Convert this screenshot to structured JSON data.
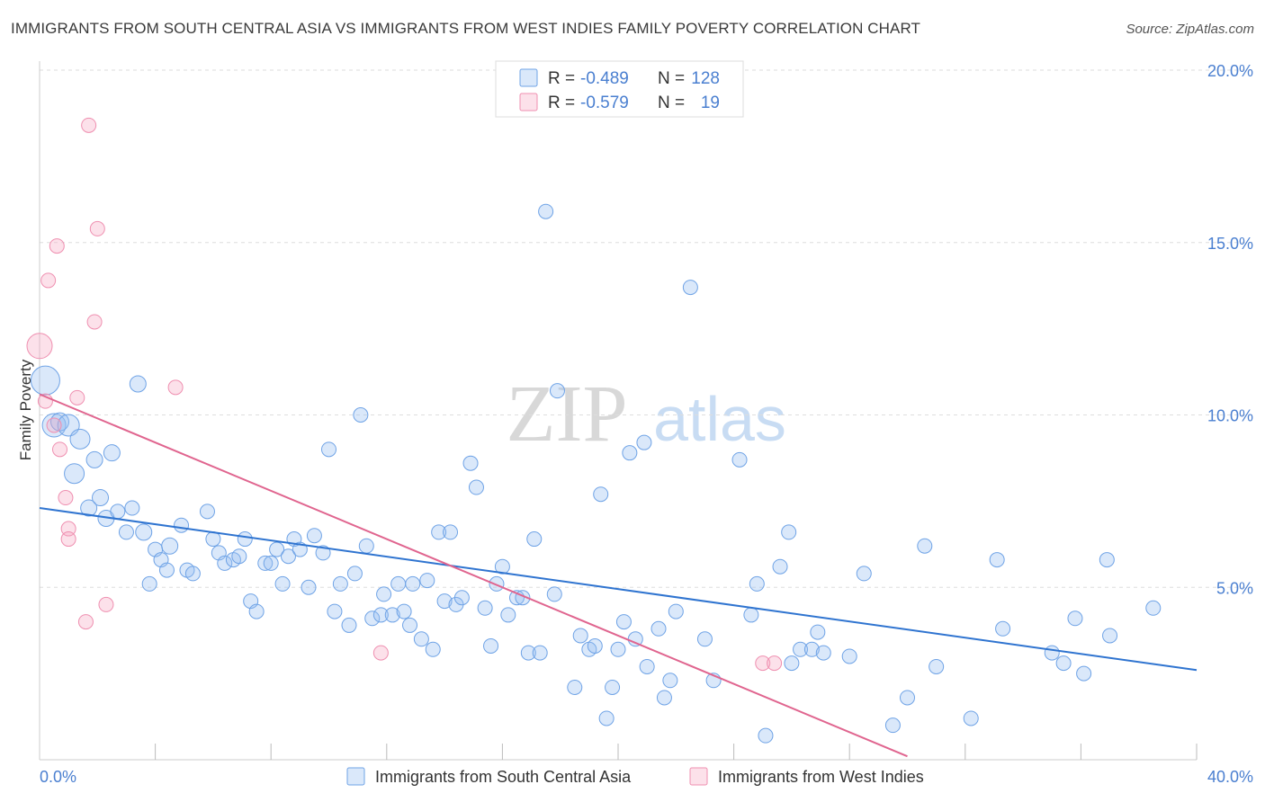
{
  "header": {
    "title": "IMMIGRANTS FROM SOUTH CENTRAL ASIA VS IMMIGRANTS FROM WEST INDIES FAMILY POVERTY CORRELATION CHART",
    "source": "Source: ZipAtlas.com"
  },
  "watermark": {
    "zip": "ZIP",
    "atlas": "atlas"
  },
  "colors": {
    "blue": "#6fa3e6",
    "blue_fill": "rgba(150,190,240,0.35)",
    "blue_line": "#2f74d0",
    "pink": "#ef8fb0",
    "pink_fill": "rgba(245,170,195,0.35)",
    "pink_line": "#e0658f",
    "axis_label": "#4a7fd0",
    "grid": "#dddddd"
  },
  "legend_box": {
    "rows": [
      {
        "r_label": "R =",
        "r_value": "-0.489",
        "n_label": "N =",
        "n_value": "128",
        "color": "blue"
      },
      {
        "r_label": "R =",
        "r_value": "-0.579",
        "n_label": "N =",
        "n_value": "19",
        "color": "pink"
      }
    ]
  },
  "chart_data": {
    "type": "scatter",
    "title": "IMMIGRANTS FROM SOUTH CENTRAL ASIA VS IMMIGRANTS FROM WEST INDIES FAMILY POVERTY CORRELATION CHART",
    "xlabel": "",
    "ylabel": "Family Poverty",
    "xlim": [
      0,
      40
    ],
    "ylim": [
      0,
      20
    ],
    "x_tick_labels": [
      "0.0%",
      "40.0%"
    ],
    "y_tick_labels": [
      "5.0%",
      "10.0%",
      "15.0%",
      "20.0%"
    ],
    "y_ticks": [
      5,
      10,
      15,
      20
    ],
    "x_minor_ticks": [
      4,
      8,
      12,
      16,
      20,
      24,
      28,
      32,
      36,
      40
    ],
    "grid": true,
    "legend_position": "bottom",
    "series": [
      {
        "name": "Immigrants from South Central Asia",
        "color": "blue",
        "r": -0.489,
        "n": 128,
        "trend": {
          "x": [
            0,
            40
          ],
          "y": [
            7.3,
            2.6
          ]
        },
        "points": [
          [
            0.2,
            11.0,
            16
          ],
          [
            0.5,
            9.7,
            13
          ],
          [
            0.7,
            9.8,
            10
          ],
          [
            1.0,
            9.7,
            12
          ],
          [
            1.4,
            9.3,
            11
          ],
          [
            1.2,
            8.3,
            11
          ],
          [
            1.9,
            8.7,
            9
          ],
          [
            2.5,
            8.9,
            9
          ],
          [
            2.1,
            7.6,
            9
          ],
          [
            1.7,
            7.3,
            9
          ],
          [
            2.3,
            7.0,
            9
          ],
          [
            2.7,
            7.2,
            8
          ],
          [
            3.2,
            7.3,
            8
          ],
          [
            3.0,
            6.6,
            8
          ],
          [
            3.6,
            6.6,
            9
          ],
          [
            3.4,
            10.9,
            9
          ],
          [
            4.0,
            6.1,
            8
          ],
          [
            4.5,
            6.2,
            9
          ],
          [
            4.2,
            5.8,
            8
          ],
          [
            4.4,
            5.5,
            8
          ],
          [
            3.8,
            5.1,
            8
          ],
          [
            4.9,
            6.8,
            8
          ],
          [
            5.1,
            5.5,
            8
          ],
          [
            5.3,
            5.4,
            8
          ],
          [
            5.8,
            7.2,
            8
          ],
          [
            6.0,
            6.4,
            8
          ],
          [
            6.2,
            6.0,
            8
          ],
          [
            6.4,
            5.7,
            8
          ],
          [
            6.7,
            5.8,
            8
          ],
          [
            6.9,
            5.9,
            8
          ],
          [
            7.1,
            6.4,
            8
          ],
          [
            7.3,
            4.6,
            8
          ],
          [
            7.5,
            4.3,
            8
          ],
          [
            7.8,
            5.7,
            8
          ],
          [
            8.0,
            5.7,
            8
          ],
          [
            8.2,
            6.1,
            8
          ],
          [
            8.4,
            5.1,
            8
          ],
          [
            8.8,
            6.4,
            8
          ],
          [
            8.6,
            5.9,
            8
          ],
          [
            9.0,
            6.1,
            8
          ],
          [
            9.3,
            5.0,
            8
          ],
          [
            9.5,
            6.5,
            8
          ],
          [
            9.8,
            6.0,
            8
          ],
          [
            10.0,
            9.0,
            8
          ],
          [
            10.2,
            4.3,
            8
          ],
          [
            10.4,
            5.1,
            8
          ],
          [
            10.7,
            3.9,
            8
          ],
          [
            10.9,
            5.4,
            8
          ],
          [
            11.1,
            10.0,
            8
          ],
          [
            11.3,
            6.2,
            8
          ],
          [
            11.5,
            4.1,
            8
          ],
          [
            11.8,
            4.2,
            8
          ],
          [
            11.9,
            4.8,
            8
          ],
          [
            12.2,
            4.2,
            8
          ],
          [
            12.4,
            5.1,
            8
          ],
          [
            12.6,
            4.3,
            8
          ],
          [
            12.8,
            3.9,
            8
          ],
          [
            12.9,
            5.1,
            8
          ],
          [
            13.2,
            3.5,
            8
          ],
          [
            13.4,
            5.2,
            8
          ],
          [
            13.6,
            3.2,
            8
          ],
          [
            13.8,
            6.6,
            8
          ],
          [
            14.0,
            4.6,
            8
          ],
          [
            14.2,
            6.6,
            8
          ],
          [
            14.4,
            4.5,
            8
          ],
          [
            14.6,
            4.7,
            8
          ],
          [
            14.9,
            8.6,
            8
          ],
          [
            15.1,
            7.9,
            8
          ],
          [
            15.4,
            4.4,
            8
          ],
          [
            15.6,
            3.3,
            8
          ],
          [
            15.8,
            5.1,
            8
          ],
          [
            16.0,
            5.6,
            8
          ],
          [
            16.2,
            4.2,
            8
          ],
          [
            16.5,
            4.7,
            8
          ],
          [
            16.7,
            4.7,
            8
          ],
          [
            16.9,
            3.1,
            8
          ],
          [
            17.1,
            6.4,
            8
          ],
          [
            17.3,
            3.1,
            8
          ],
          [
            17.5,
            15.9,
            8
          ],
          [
            17.8,
            4.8,
            8
          ],
          [
            17.9,
            10.7,
            8
          ],
          [
            18.5,
            2.1,
            8
          ],
          [
            18.7,
            3.6,
            8
          ],
          [
            19.0,
            3.2,
            8
          ],
          [
            19.2,
            3.3,
            8
          ],
          [
            19.4,
            7.7,
            8
          ],
          [
            19.6,
            1.2,
            8
          ],
          [
            19.8,
            2.1,
            8
          ],
          [
            20.0,
            3.2,
            8
          ],
          [
            20.2,
            4.0,
            8
          ],
          [
            20.4,
            8.9,
            8
          ],
          [
            20.6,
            3.5,
            8
          ],
          [
            20.9,
            9.2,
            8
          ],
          [
            21.0,
            2.7,
            8
          ],
          [
            21.4,
            3.8,
            8
          ],
          [
            21.6,
            1.8,
            8
          ],
          [
            21.8,
            2.3,
            8
          ],
          [
            22.0,
            4.3,
            8
          ],
          [
            22.5,
            13.7,
            8
          ],
          [
            23.0,
            3.5,
            8
          ],
          [
            23.3,
            2.3,
            8
          ],
          [
            24.2,
            8.7,
            8
          ],
          [
            24.6,
            4.2,
            8
          ],
          [
            24.8,
            5.1,
            8
          ],
          [
            25.1,
            0.7,
            8
          ],
          [
            25.6,
            5.6,
            8
          ],
          [
            25.9,
            6.6,
            8
          ],
          [
            26.0,
            2.8,
            8
          ],
          [
            26.3,
            3.2,
            8
          ],
          [
            26.7,
            3.2,
            8
          ],
          [
            26.9,
            3.7,
            8
          ],
          [
            27.1,
            3.1,
            8
          ],
          [
            28.0,
            3.0,
            8
          ],
          [
            28.5,
            5.4,
            8
          ],
          [
            29.5,
            1.0,
            8
          ],
          [
            30.0,
            1.8,
            8
          ],
          [
            30.6,
            6.2,
            8
          ],
          [
            31.0,
            2.7,
            8
          ],
          [
            32.2,
            1.2,
            8
          ],
          [
            33.1,
            5.8,
            8
          ],
          [
            33.3,
            3.8,
            8
          ],
          [
            35.0,
            3.1,
            8
          ],
          [
            35.4,
            2.8,
            8
          ],
          [
            35.8,
            4.1,
            8
          ],
          [
            36.1,
            2.5,
            8
          ],
          [
            36.9,
            5.8,
            8
          ],
          [
            37.0,
            3.6,
            8
          ],
          [
            38.5,
            4.4,
            8
          ]
        ]
      },
      {
        "name": "Immigrants from West Indies",
        "color": "pink",
        "r": -0.579,
        "n": 19,
        "trend": {
          "x": [
            0,
            30
          ],
          "y": [
            10.6,
            0.1
          ]
        },
        "points": [
          [
            0.0,
            12.0,
            14
          ],
          [
            0.2,
            10.4,
            8
          ],
          [
            0.3,
            13.9,
            8
          ],
          [
            0.6,
            14.9,
            8
          ],
          [
            0.7,
            9.0,
            8
          ],
          [
            0.9,
            7.6,
            8
          ],
          [
            1.0,
            6.7,
            8
          ],
          [
            1.0,
            6.4,
            8
          ],
          [
            1.3,
            10.5,
            8
          ],
          [
            1.6,
            4.0,
            8
          ],
          [
            1.7,
            18.4,
            8
          ],
          [
            1.9,
            12.7,
            8
          ],
          [
            2.0,
            15.4,
            8
          ],
          [
            2.3,
            4.5,
            8
          ],
          [
            4.7,
            10.8,
            8
          ],
          [
            11.8,
            3.1,
            8
          ],
          [
            25.0,
            2.8,
            8
          ],
          [
            25.4,
            2.8,
            8
          ],
          [
            0.5,
            9.7,
            8
          ]
        ]
      }
    ]
  },
  "bottom_legend": [
    {
      "label": "Immigrants from South Central Asia",
      "color": "blue"
    },
    {
      "label": "Immigrants from West Indies",
      "color": "pink"
    }
  ]
}
